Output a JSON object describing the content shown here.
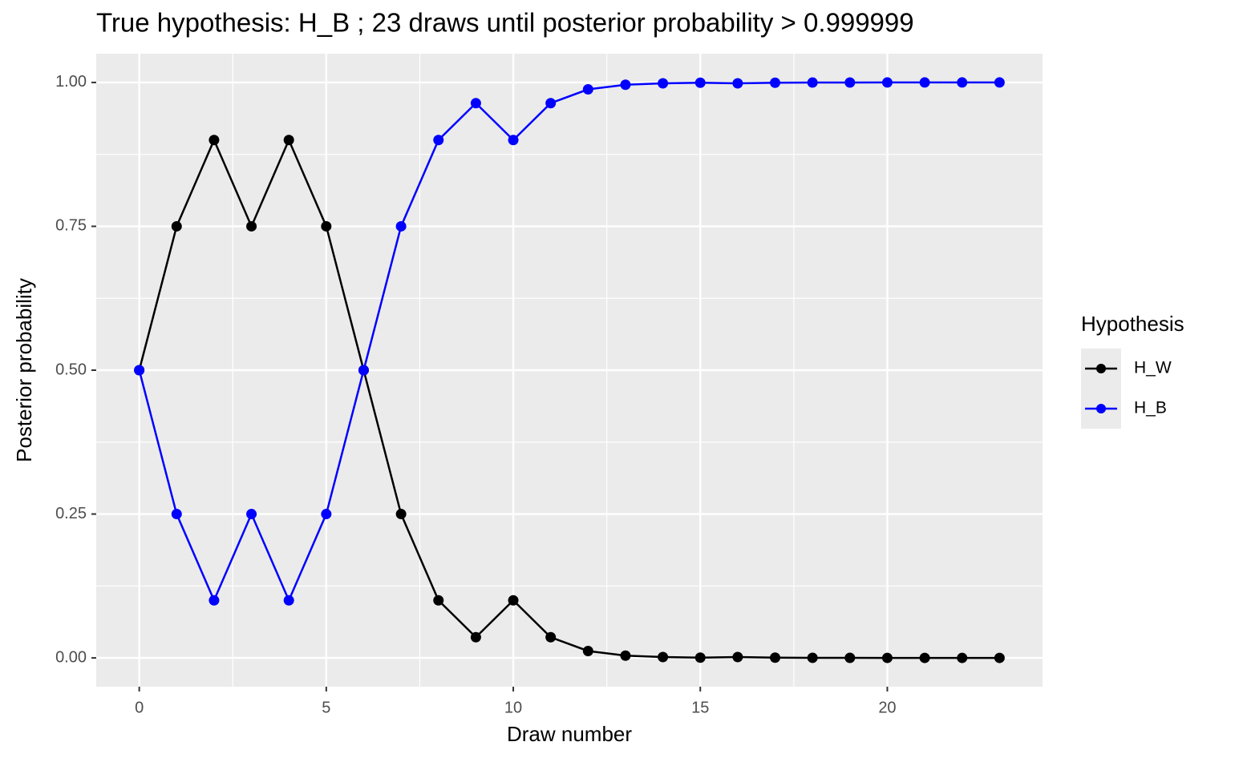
{
  "chart_data": {
    "type": "line",
    "title": "True hypothesis: H_B ;  23 draws until posterior probability > 0.999999",
    "x_label": "Draw number",
    "y_label": "Posterior probability",
    "legend_title": "Hypothesis",
    "legend_position": "right",
    "grid": true,
    "x": [
      0,
      1,
      2,
      3,
      4,
      5,
      6,
      7,
      8,
      9,
      10,
      11,
      12,
      13,
      14,
      15,
      16,
      17,
      18,
      19,
      20,
      21,
      22,
      23
    ],
    "series": [
      {
        "name": "H_W",
        "color": "#000000",
        "values": [
          0.5,
          0.75,
          0.9,
          0.75,
          0.9,
          0.75,
          0.5,
          0.25,
          0.1,
          0.036,
          0.1,
          0.036,
          0.012,
          0.004,
          0.0015,
          0.0005,
          0.0015,
          0.0005,
          0.0002,
          0.0001,
          0,
          0,
          0,
          0
        ]
      },
      {
        "name": "H_B",
        "color": "#0000ff",
        "values": [
          0.5,
          0.25,
          0.1,
          0.25,
          0.1,
          0.25,
          0.5,
          0.75,
          0.9,
          0.964,
          0.9,
          0.964,
          0.988,
          0.996,
          0.9985,
          0.9995,
          0.9985,
          0.9995,
          0.9998,
          0.9999,
          1,
          1,
          1,
          1
        ]
      }
    ],
    "xlim": [
      -1.15,
      24.15
    ],
    "xticks": [
      0,
      5,
      10,
      15,
      20
    ],
    "ylim": [
      -0.05,
      1.05
    ],
    "yticks": [
      {
        "value": 0,
        "label": "0.00"
      },
      {
        "value": 0.25,
        "label": "0.25"
      },
      {
        "value": 0.5,
        "label": "0.50"
      },
      {
        "value": 0.75,
        "label": "0.75"
      },
      {
        "value": 1,
        "label": "1.00"
      }
    ]
  }
}
